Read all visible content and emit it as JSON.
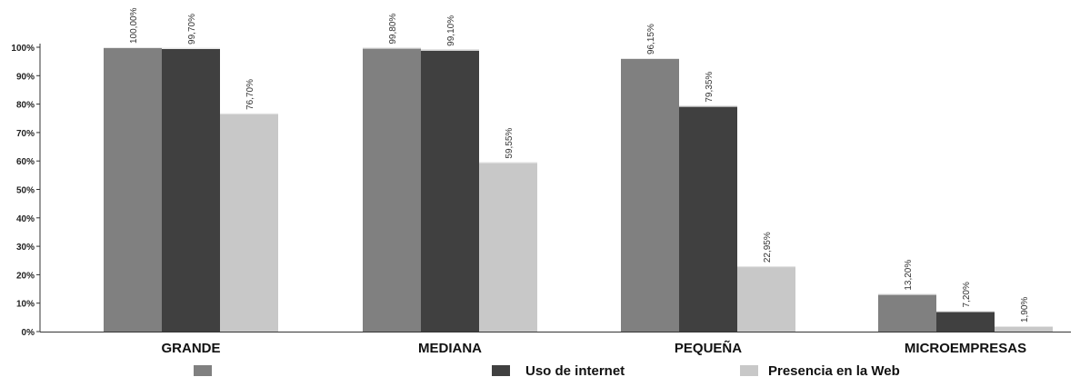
{
  "chart_data": {
    "type": "bar",
    "categories": [
      "GRANDE",
      "MEDIANA",
      "PEQUEÑA",
      "MICROEMPRESAS"
    ],
    "series": [
      {
        "name": "",
        "color": "#808080",
        "values": [
          100.0,
          99.8,
          96.15,
          13.2
        ],
        "labels": [
          "100,00%",
          "99,80%",
          "96,15%",
          "13,20%"
        ]
      },
      {
        "name": "Uso de internet",
        "color": "#404040",
        "values": [
          99.7,
          99.1,
          79.35,
          7.2
        ],
        "labels": [
          "99,70%",
          "99,10%",
          "79,35%",
          "7,20%"
        ]
      },
      {
        "name": "Presencia en la Web",
        "color": "#c8c8c8",
        "values": [
          76.7,
          59.55,
          22.95,
          1.9
        ],
        "labels": [
          "76,70%",
          "59,55%",
          "22,95%",
          "1,90%"
        ]
      }
    ],
    "ylim": [
      0,
      100
    ],
    "yticks": [
      0,
      10,
      20,
      30,
      40,
      50,
      60,
      70,
      80,
      90,
      100
    ],
    "ytick_labels": [
      "0%",
      "10%",
      "20%",
      "30%",
      "40%",
      "50%",
      "60%",
      "70%",
      "80%",
      "90%",
      "100%"
    ],
    "grid": false,
    "legend": "bottom"
  }
}
